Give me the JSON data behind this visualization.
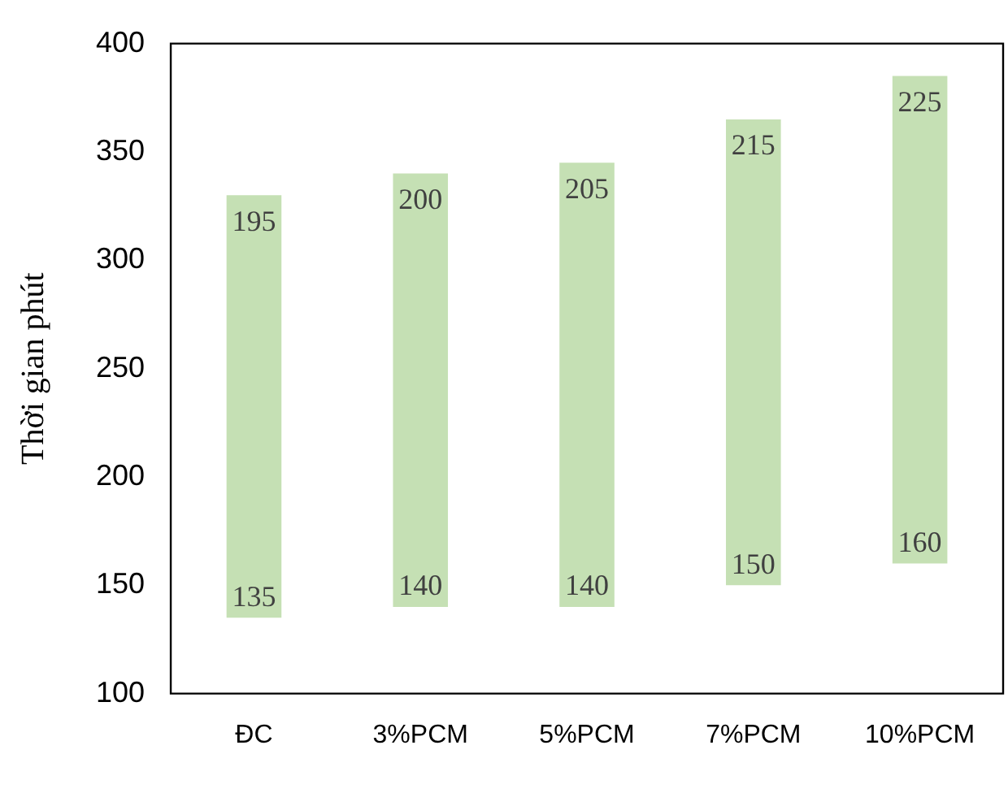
{
  "chart_data": {
    "type": "bar",
    "ylabel": "Thời gian phút",
    "categories": [
      "ĐC",
      "3%PCM",
      "5%PCM",
      "7%PCM",
      "10%PCM"
    ],
    "values": [
      195,
      200,
      205,
      215,
      225
    ],
    "base": [
      135,
      140,
      140,
      150,
      160
    ],
    "color": "#c5e0b4",
    "ylim": [
      100,
      400
    ],
    "yticks": [
      100,
      150,
      200,
      250,
      300,
      350,
      400
    ],
    "grid": false,
    "legend": false,
    "data_labels": true,
    "annotations": [
      {
        "text": "135",
        "x": "ĐC",
        "y": 135
      },
      {
        "text": "140",
        "x": "3%PCM",
        "y": 140
      },
      {
        "text": "140",
        "x": "5%PCM",
        "y": 140
      },
      {
        "text": "150",
        "x": "7%PCM",
        "y": 150
      },
      {
        "text": "160",
        "x": "10%PCM",
        "y": 160
      }
    ]
  }
}
